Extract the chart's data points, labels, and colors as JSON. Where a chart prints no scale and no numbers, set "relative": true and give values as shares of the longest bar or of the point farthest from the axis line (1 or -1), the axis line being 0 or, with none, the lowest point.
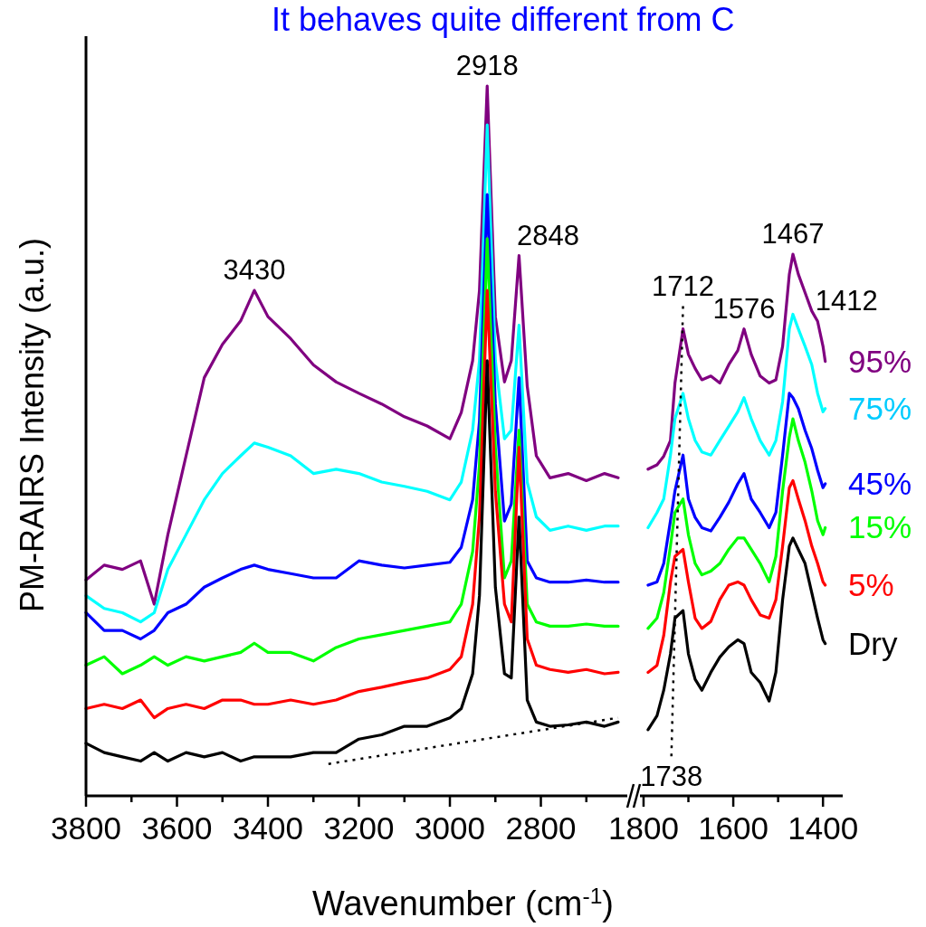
{
  "chart_data": [
    {
      "type": "line",
      "title": "It behaves quite different from C",
      "xlabel": "Wavenumber (cm$^{-1}$)",
      "ylabel": "PM-RAIRS Intensity (a.u.)",
      "relative": true,
      "tick_labels": "x",
      "marker": "none",
      "line_style": "solid",
      "xlim": [
        3800,
        2610
      ],
      "xticks": [
        3800,
        {
          "value": 3700,
          "label": null
        },
        3600,
        {
          "value": 3500,
          "label": null
        },
        3400,
        {
          "value": 3300,
          "label": null
        },
        3200,
        {
          "value": 3100,
          "label": null
        },
        3000,
        {
          "value": 2900,
          "label": null
        },
        2800,
        {
          "value": 2700,
          "label": null
        }
      ],
      "x": [
        3800,
        3760,
        3720,
        3680,
        3650,
        3620,
        3580,
        3540,
        3500,
        3460,
        3430,
        3400,
        3350,
        3300,
        3250,
        3200,
        3150,
        3100,
        3050,
        3000,
        2975,
        2950,
        2935,
        2918,
        2900,
        2880,
        2865,
        2848,
        2830,
        2810,
        2780,
        2740,
        2700,
        2660,
        2630
      ],
      "series": [
        {
          "color": "#800080",
          "values": [
            0.304,
            0.325,
            0.319,
            0.331,
            0.27,
            0.368,
            0.479,
            0.589,
            0.636,
            0.669,
            0.712,
            0.675,
            0.644,
            0.607,
            0.583,
            0.567,
            0.552,
            0.534,
            0.521,
            0.503,
            0.54,
            0.613,
            0.712,
            1,
            0.675,
            0.583,
            0.613,
            0.761,
            0.577,
            0.479,
            0.448,
            0.454,
            0.444,
            0.454,
            0.448
          ]
        },
        {
          "color": "#00ffff",
          "values": [
            0.282,
            0.264,
            0.258,
            0.245,
            0.258,
            0.319,
            0.368,
            0.417,
            0.454,
            0.479,
            0.497,
            0.491,
            0.479,
            0.454,
            0.46,
            0.454,
            0.442,
            0.436,
            0.429,
            0.417,
            0.442,
            0.515,
            0.613,
            0.945,
            0.613,
            0.503,
            0.515,
            0.663,
            0.442,
            0.393,
            0.374,
            0.38,
            0.374,
            0.38,
            0.38
          ]
        },
        {
          "color": "#0000ff",
          "values": [
            0.258,
            0.233,
            0.233,
            0.221,
            0.233,
            0.258,
            0.27,
            0.294,
            0.307,
            0.319,
            0.325,
            0.319,
            0.313,
            0.307,
            0.307,
            0.331,
            0.325,
            0.321,
            0.325,
            0.329,
            0.35,
            0.417,
            0.528,
            0.847,
            0.552,
            0.387,
            0.411,
            0.589,
            0.331,
            0.307,
            0.301,
            0.301,
            0.304,
            0.301,
            0.301
          ]
        },
        {
          "color": "#00ff00",
          "values": [
            0.184,
            0.196,
            0.172,
            0.184,
            0.196,
            0.184,
            0.196,
            0.19,
            0.196,
            0.202,
            0.215,
            0.202,
            0.202,
            0.19,
            0.209,
            0.221,
            0.227,
            0.233,
            0.239,
            0.245,
            0.27,
            0.344,
            0.466,
            0.785,
            0.491,
            0.307,
            0.331,
            0.515,
            0.27,
            0.245,
            0.239,
            0.239,
            0.242,
            0.239,
            0.239
          ]
        },
        {
          "color": "#ff0000",
          "values": [
            0.123,
            0.129,
            0.123,
            0.135,
            0.11,
            0.123,
            0.129,
            0.123,
            0.135,
            0.135,
            0.129,
            0.129,
            0.135,
            0.129,
            0.135,
            0.147,
            0.153,
            0.16,
            0.166,
            0.178,
            0.196,
            0.27,
            0.393,
            0.712,
            0.429,
            0.27,
            0.245,
            0.491,
            0.221,
            0.184,
            0.178,
            0.174,
            0.178,
            0.172,
            0.174
          ]
        },
        {
          "color": "#000000",
          "values": [
            0.074,
            0.061,
            0.055,
            0.049,
            0.061,
            0.049,
            0.061,
            0.055,
            0.061,
            0.049,
            0.055,
            0.055,
            0.055,
            0.061,
            0.061,
            0.08,
            0.086,
            0.098,
            0.098,
            0.11,
            0.123,
            0.172,
            0.282,
            0.613,
            0.294,
            0.172,
            0.166,
            0.393,
            0.135,
            0.104,
            0.098,
            0.1,
            0.104,
            0.098,
            0.104
          ]
        },
        {
          "type": "line",
          "line_style": "dotted",
          "color": "#000000",
          "x": [
            3267,
            2630
          ],
          "values": [
            0.045,
            0.11
          ]
        }
      ],
      "annotations": [
        {
          "text": "3430",
          "x": 3430,
          "y": 0.712
        },
        {
          "text": "2918",
          "x": 2918,
          "y": 1
        },
        {
          "text": "2848",
          "x": 2848,
          "y": 0.761
        }
      ]
    },
    {
      "type": "line",
      "relative": true,
      "tick_labels": "x",
      "marker": "none",
      "line_style": "solid",
      "xlim": [
        1808,
        1356
      ],
      "xticks": [
        1800,
        {
          "value": 1700,
          "label": null
        },
        1600,
        {
          "value": 1500,
          "label": null
        },
        1400
      ],
      "x": [
        1790,
        1770,
        1755,
        1740,
        1730,
        1712,
        1700,
        1685,
        1670,
        1650,
        1630,
        1610,
        1590,
        1576,
        1560,
        1540,
        1520,
        1505,
        1490,
        1475,
        1467,
        1455,
        1440,
        1425,
        1412,
        1400,
        1395
      ],
      "series": [
        {
          "name": "95%",
          "color": "#800080",
          "values": [
            0.603,
            0.611,
            0.627,
            0.656,
            0.762,
            0.862,
            0.815,
            0.789,
            0.768,
            0.775,
            0.762,
            0.796,
            0.822,
            0.862,
            0.815,
            0.775,
            0.762,
            0.768,
            0.83,
            0.963,
            1,
            0.963,
            0.929,
            0.895,
            0.876,
            0.83,
            0.802
          ]
        },
        {
          "name": "75%",
          "color": "#00ffff",
          "values": [
            0.495,
            0.523,
            0.548,
            0.629,
            0.696,
            0.743,
            0.696,
            0.656,
            0.635,
            0.629,
            0.656,
            0.682,
            0.709,
            0.735,
            0.696,
            0.656,
            0.629,
            0.656,
            0.728,
            0.862,
            0.889,
            0.862,
            0.83,
            0.796,
            0.743,
            0.709,
            0.715
          ]
        },
        {
          "name": "45%",
          "color": "#0000ff",
          "values": [
            0.389,
            0.395,
            0.429,
            0.508,
            0.563,
            0.629,
            0.548,
            0.514,
            0.495,
            0.489,
            0.514,
            0.542,
            0.576,
            0.595,
            0.548,
            0.523,
            0.495,
            0.523,
            0.629,
            0.743,
            0.735,
            0.715,
            0.675,
            0.641,
            0.601,
            0.569,
            0.576
          ]
        },
        {
          "name": "15%",
          "color": "#00ff00",
          "values": [
            0.309,
            0.328,
            0.375,
            0.461,
            0.523,
            0.548,
            0.482,
            0.429,
            0.408,
            0.415,
            0.429,
            0.455,
            0.476,
            0.476,
            0.455,
            0.429,
            0.395,
            0.442,
            0.563,
            0.662,
            0.696,
            0.656,
            0.616,
            0.563,
            0.508,
            0.482,
            0.495
          ]
        },
        {
          "name": "5%",
          "color": "#ff0000",
          "values": [
            0.228,
            0.241,
            0.296,
            0.395,
            0.442,
            0.455,
            0.395,
            0.328,
            0.309,
            0.322,
            0.362,
            0.389,
            0.395,
            0.389,
            0.362,
            0.334,
            0.328,
            0.362,
            0.461,
            0.569,
            0.582,
            0.548,
            0.508,
            0.461,
            0.429,
            0.395,
            0.389
          ]
        },
        {
          "name": "Dry",
          "color": "#000000",
          "values": [
            0.122,
            0.148,
            0.195,
            0.262,
            0.328,
            0.342,
            0.262,
            0.215,
            0.195,
            0.228,
            0.256,
            0.275,
            0.288,
            0.281,
            0.228,
            0.209,
            0.175,
            0.228,
            0.362,
            0.461,
            0.476,
            0.455,
            0.429,
            0.375,
            0.328,
            0.288,
            0.281
          ]
        },
        {
          "type": "line",
          "line_style": "dotted",
          "color": "#000000",
          "x": [
            1712,
            1738
          ],
          "values": [
            0.904,
            0.072
          ]
        }
      ],
      "annotations": [
        {
          "text": "1712",
          "x": 1712,
          "y": 0.904
        },
        {
          "text": "1576",
          "x": 1576,
          "y": 0.862
        },
        {
          "text": "1467",
          "x": 1467,
          "y": 1
        },
        {
          "text": "1412",
          "x": 1412,
          "y": 0.876
        },
        {
          "text": "1738",
          "x": 1738,
          "y": 0.072
        }
      ]
    }
  ]
}
